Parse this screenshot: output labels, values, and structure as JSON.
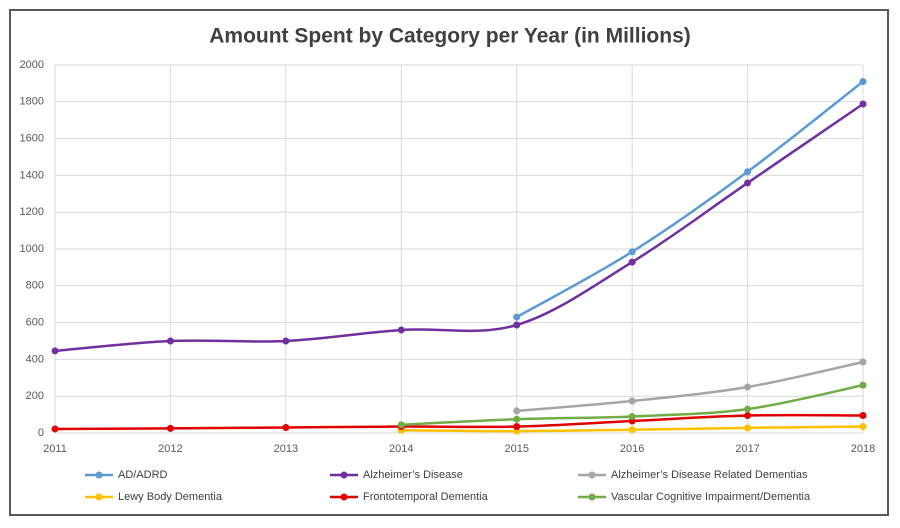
{
  "chart_data": {
    "type": "line",
    "title": "Amount Spent by Category per Year (in Millions)",
    "x": [
      2011,
      2012,
      2013,
      2014,
      2015,
      2016,
      2017,
      2018
    ],
    "xlim": [
      2011,
      2018
    ],
    "xticks": [
      2011,
      2012,
      2013,
      2014,
      2015,
      2016,
      2017,
      2018
    ],
    "ylim": [
      0,
      2000
    ],
    "yticks": [
      0,
      200,
      400,
      600,
      800,
      1000,
      1200,
      1400,
      1600,
      1800,
      2000
    ],
    "grid": true,
    "legend": "bottom",
    "series": [
      {
        "name": "AD/ADRD",
        "color": "#5b9bd5",
        "values": [
          null,
          null,
          null,
          null,
          630,
          985,
          1420,
          1910
        ]
      },
      {
        "name": "Alzheimer’s Disease",
        "color": "#7030a0",
        "values": [
          446,
          500,
          500,
          560,
          587,
          929,
          1359,
          1788
        ]
      },
      {
        "name": "Alzheimer’s Disease Related Dementias",
        "color": "#a5a5a5",
        "values": [
          null,
          null,
          null,
          null,
          120,
          174,
          250,
          386
        ]
      },
      {
        "name": "Lewy Body Dementia",
        "color": "#ffc000",
        "values": [
          null,
          null,
          null,
          15,
          10,
          18,
          28,
          35
        ]
      },
      {
        "name": "Frontotemporal Dementia",
        "color": "#e00000",
        "values": [
          22,
          25,
          30,
          35,
          35,
          65,
          95,
          95
        ]
      },
      {
        "name": "Vascular Cognitive Impairment/Dementia",
        "color": "#70ad47",
        "values": [
          null,
          null,
          null,
          45,
          75,
          90,
          130,
          260
        ]
      }
    ]
  }
}
